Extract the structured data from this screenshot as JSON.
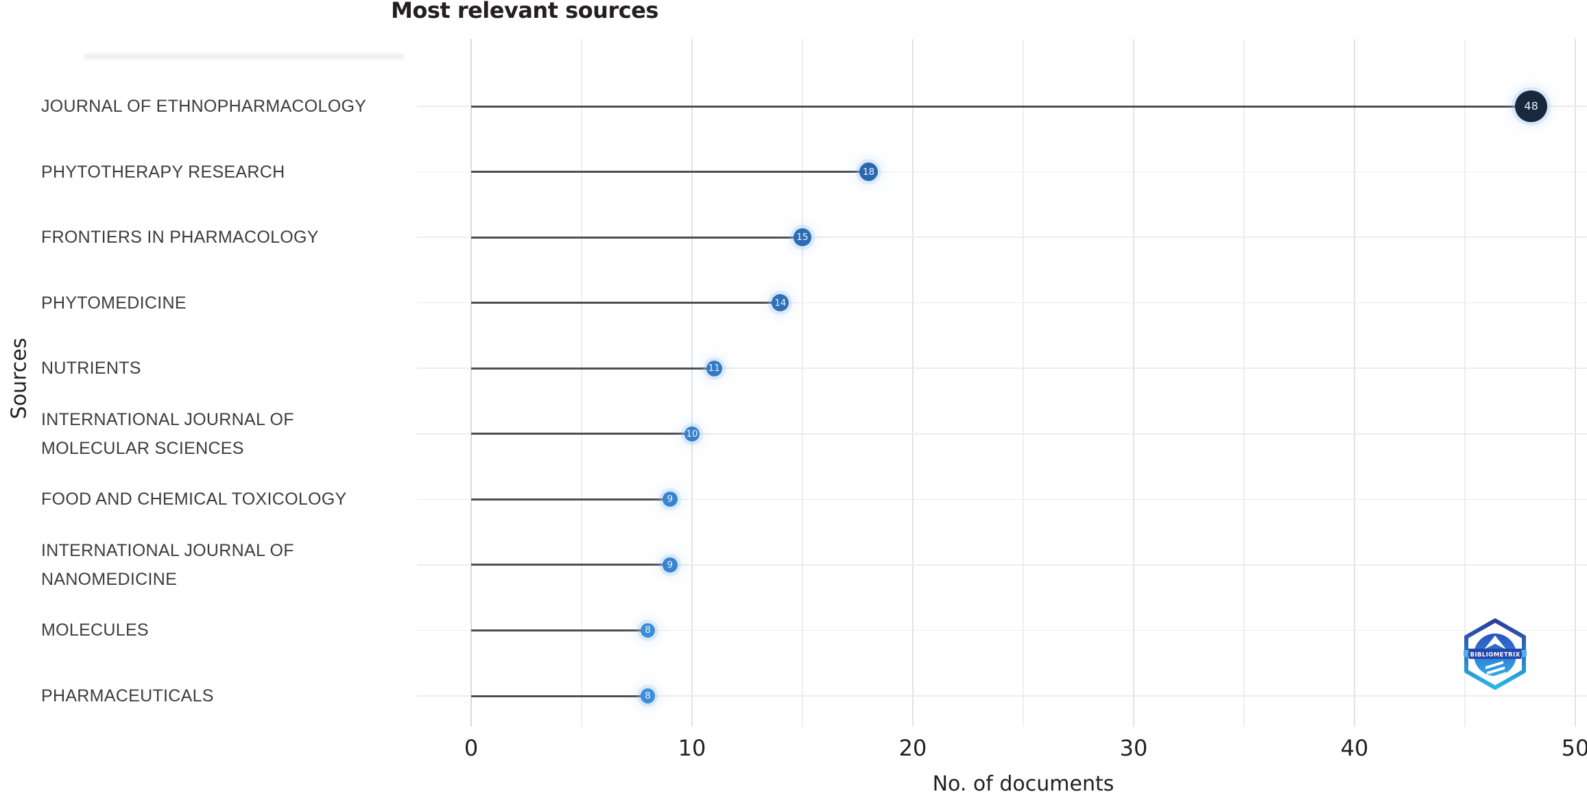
{
  "chart": {
    "title": "Most relevant sources",
    "xlabel": "No. of documents",
    "ylabel": "Sources"
  },
  "chart_data": {
    "type": "lollipop",
    "orientation": "horizontal",
    "title": "Most relevant sources",
    "xlabel": "No. of documents",
    "ylabel": "Sources",
    "categories": [
      "JOURNAL OF ETHNOPHARMACOLOGY",
      "PHYTOTHERAPY RESEARCH",
      "FRONTIERS IN PHARMACOLOGY",
      "PHYTOMEDICINE",
      "NUTRIENTS",
      "INTERNATIONAL JOURNAL OF\nMOLECULAR SCIENCES",
      "FOOD AND CHEMICAL TOXICOLOGY",
      "INTERNATIONAL JOURNAL OF\nNANOMEDICINE",
      "MOLECULES",
      "PHARMACEUTICALS"
    ],
    "values": [
      48,
      18,
      15,
      14,
      11,
      10,
      9,
      9,
      8,
      8
    ],
    "point_colors": [
      "#18293e",
      "#2c67ae",
      "#2d6cb4",
      "#2e6fb8",
      "#3379c3",
      "#3680cb",
      "#3884d0",
      "#3884d0",
      "#3c8dda",
      "#3c8dda"
    ],
    "point_value_text_color": "#eef3fa",
    "stem_color": "#4d4d4d",
    "gridline_color_major": "#e3e3e3",
    "gridline_color_minor": "#efefef",
    "x_ticks": [
      0,
      10,
      20,
      30,
      40,
      50
    ],
    "xlim": [
      0,
      50
    ],
    "grid": true,
    "legend": "none"
  },
  "logo": {
    "label": "BIBLIOMETRIX"
  }
}
